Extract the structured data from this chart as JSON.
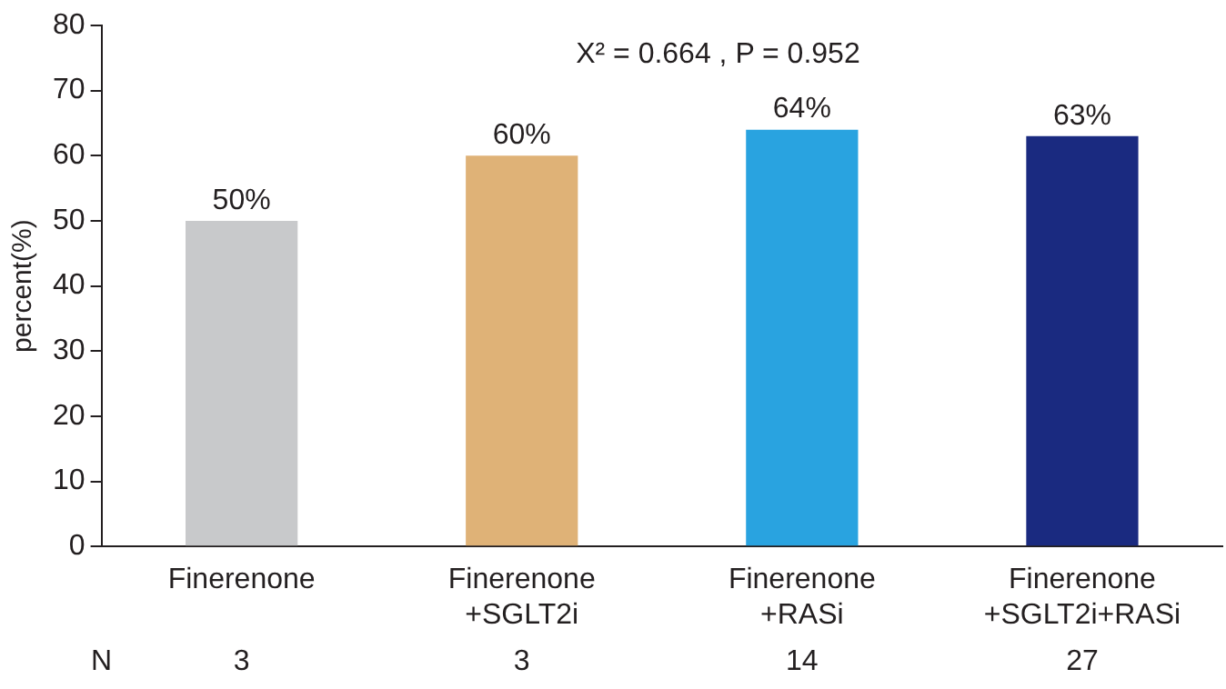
{
  "chart_data": {
    "type": "bar",
    "ylabel": "percent(%)",
    "categories": [
      "Finerenone",
      "Finerenone\n+SGLT2i",
      "Finerenone\n+RASi",
      "Finerenone\n+SGLT2i+RASi"
    ],
    "values": [
      50,
      60,
      64,
      63
    ],
    "colors": [
      "#c8c9cb",
      "#dfb277",
      "#29a3e0",
      "#1a2a80"
    ],
    "value_labels": [
      "50%",
      "60%",
      "64%",
      "63%"
    ],
    "ylim": [
      0,
      80
    ],
    "yticks": [
      0,
      10,
      20,
      30,
      40,
      50,
      60,
      70,
      80
    ],
    "grid": false,
    "legend": false,
    "annotations": [
      "X² = 0.664 , P = 0.952",
      "N",
      "3",
      "3",
      "14",
      "27"
    ]
  }
}
